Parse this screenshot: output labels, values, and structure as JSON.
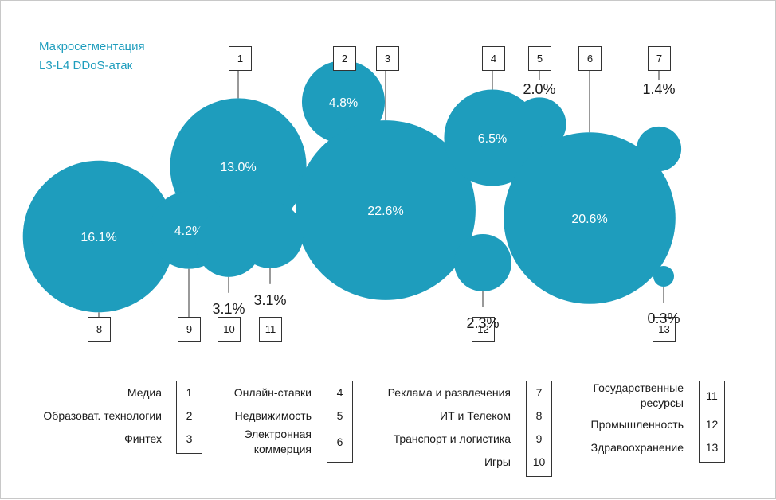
{
  "colors": {
    "bubble": "#1e9dbd",
    "title": "#1e9dbd",
    "line": "#555555"
  },
  "chart_data": {
    "type": "bubble",
    "title_line1": "Макросегментация",
    "title_line2": "L3-L4 DDoS-атак",
    "points": [
      {
        "id": "1",
        "value": 13.0,
        "label": "13.0%"
      },
      {
        "id": "2",
        "value": 4.8,
        "label": "4.8%"
      },
      {
        "id": "3",
        "value": 22.6,
        "label": "22.6%"
      },
      {
        "id": "4",
        "value": 6.5,
        "label": "6.5%"
      },
      {
        "id": "5",
        "value": 2.0,
        "label": "2.0%"
      },
      {
        "id": "6",
        "value": 20.6,
        "label": "20.6%"
      },
      {
        "id": "7",
        "value": 1.4,
        "label": "1.4%"
      },
      {
        "id": "8",
        "value": 16.1,
        "label": "16.1%"
      },
      {
        "id": "9",
        "value": 4.2,
        "label": "4.2%"
      },
      {
        "id": "10",
        "value": 3.1,
        "label": "3.1%"
      },
      {
        "id": "11",
        "value": 3.1,
        "label": "3.1%"
      },
      {
        "id": "12",
        "value": 2.3,
        "label": "2.3%"
      },
      {
        "id": "13",
        "value": 0.3,
        "label": "0.3%"
      }
    ],
    "legend": [
      {
        "lines": [
          "Медиа"
        ],
        "number": "1"
      },
      {
        "lines": [
          "Образоват. технологии"
        ],
        "number": "2"
      },
      {
        "lines": [
          "Финтех"
        ],
        "number": "3"
      },
      {
        "lines": [
          "Онлайн-ставки"
        ],
        "number": "4"
      },
      {
        "lines": [
          "Недвижимость"
        ],
        "number": "5"
      },
      {
        "lines": [
          "Электронная",
          "коммерция"
        ],
        "number": "6"
      },
      {
        "lines": [
          "Реклама и развлечения"
        ],
        "number": "7"
      },
      {
        "lines": [
          "ИТ и Телеком"
        ],
        "number": "8"
      },
      {
        "lines": [
          "Транспорт и логистика"
        ],
        "number": "9"
      },
      {
        "lines": [
          "Игры"
        ],
        "number": "10"
      },
      {
        "lines": [
          "Государственные",
          "ресурсы"
        ],
        "number": "11"
      },
      {
        "lines": [
          "Промышленность"
        ],
        "number": "12"
      },
      {
        "lines": [
          "Здравоохранение"
        ],
        "number": "13"
      }
    ]
  }
}
